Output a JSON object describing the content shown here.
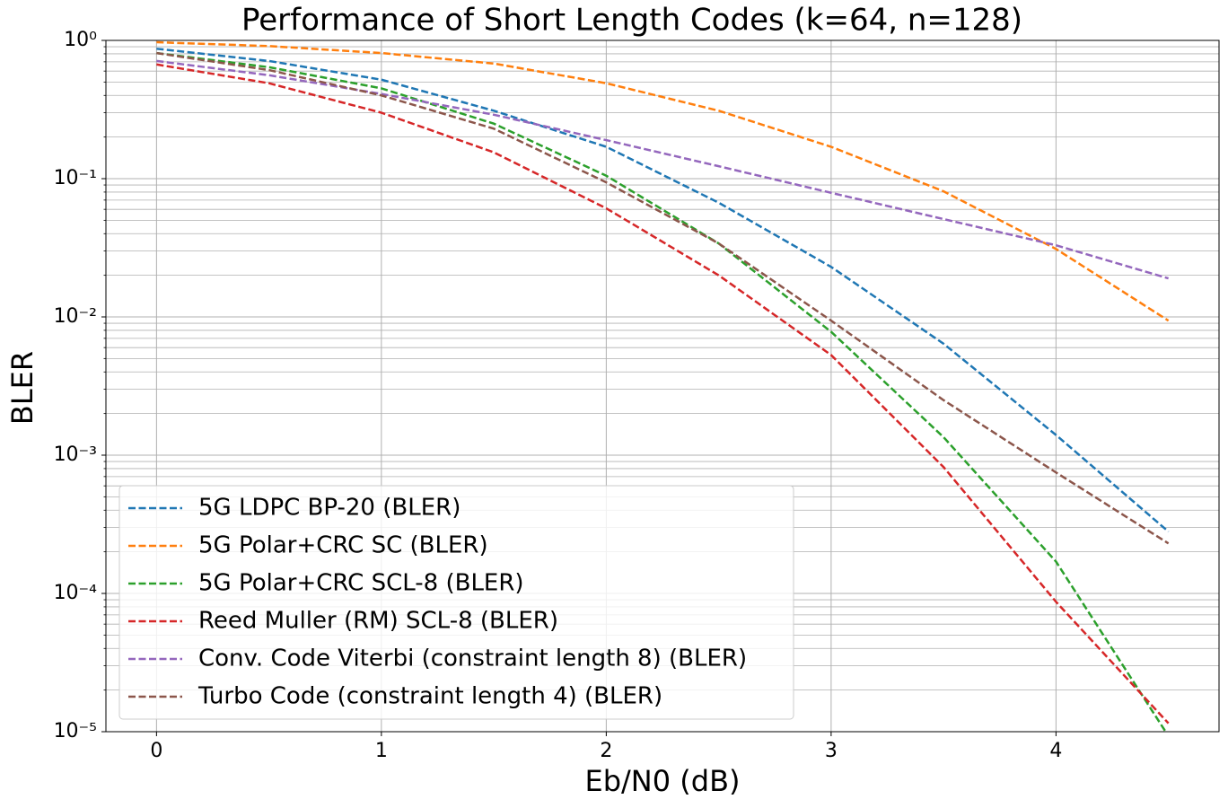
{
  "chart_data": {
    "type": "line",
    "title": "Performance of Short Length Codes (k=64, n=128)",
    "xlabel": "Eb/N0 (dB)",
    "ylabel": "BLER",
    "x": [
      0,
      0.5,
      1,
      1.5,
      2,
      2.5,
      3,
      3.5,
      4,
      4.5
    ],
    "xlim": [
      -0.225,
      4.725
    ],
    "xticks": [
      0,
      1,
      2,
      3,
      4
    ],
    "ylim": [
      1e-05,
      1
    ],
    "yscale": "log",
    "yticks": [
      {
        "value": 1,
        "label": "10⁰"
      },
      {
        "value": 0.1,
        "label": "10⁻¹"
      },
      {
        "value": 0.01,
        "label": "10⁻²"
      },
      {
        "value": 0.001,
        "label": "10⁻³"
      },
      {
        "value": 0.0001,
        "label": "10⁻⁴"
      },
      {
        "value": 1e-05,
        "label": "10⁻⁵"
      }
    ],
    "grid": true,
    "minor_grid": true,
    "line_style": "dashed",
    "legend": "lower left",
    "series": [
      {
        "name": "5G LDPC BP-20 (BLER)",
        "color": "#1f77b4",
        "values": [
          0.87,
          0.71,
          0.52,
          0.31,
          0.17,
          0.067,
          0.023,
          0.0064,
          0.0014,
          0.00028
        ]
      },
      {
        "name": "5G Polar+CRC SC (BLER)",
        "color": "#ff7f0e",
        "values": [
          0.97,
          0.91,
          0.81,
          0.68,
          0.49,
          0.31,
          0.17,
          0.081,
          0.031,
          0.0094
        ]
      },
      {
        "name": "5G Polar+CRC SCL-8 (BLER)",
        "color": "#2ca02c",
        "values": [
          0.81,
          0.64,
          0.45,
          0.25,
          0.105,
          0.034,
          0.0078,
          0.00135,
          0.00017,
          9.3e-06
        ]
      },
      {
        "name": "Reed Muller (RM) SCL-8 (BLER)",
        "color": "#d62728",
        "values": [
          0.67,
          0.49,
          0.3,
          0.155,
          0.061,
          0.02,
          0.0053,
          0.00082,
          8.7e-05,
          1.15e-05
        ]
      },
      {
        "name": "Conv. Code Viterbi (constraint length 8) (BLER)",
        "color": "#9467bd",
        "values": [
          0.71,
          0.56,
          0.41,
          0.29,
          0.19,
          0.123,
          0.079,
          0.051,
          0.033,
          0.019
        ]
      },
      {
        "name": "Turbo Code (constraint length 4) (BLER)",
        "color": "#8c564b",
        "values": [
          0.81,
          0.61,
          0.4,
          0.23,
          0.094,
          0.034,
          0.0094,
          0.0025,
          0.00075,
          0.00023
        ]
      }
    ]
  }
}
